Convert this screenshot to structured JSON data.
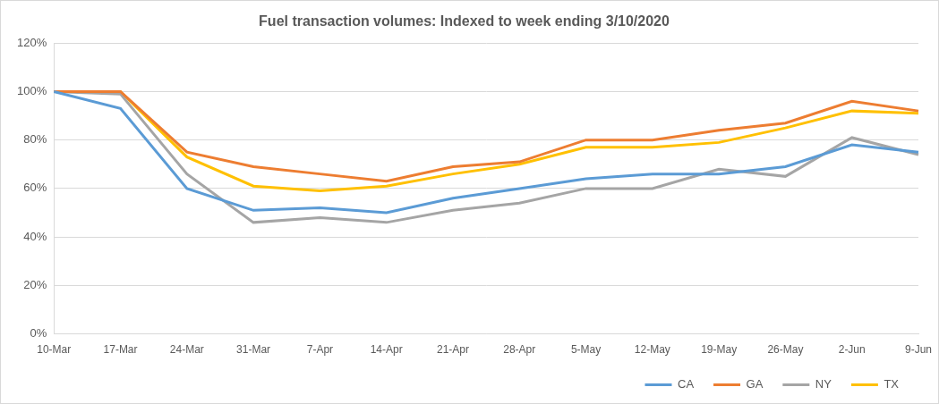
{
  "chart_data": {
    "type": "line",
    "title": "Fuel transaction volumes: Indexed to week ending 3/10/2020",
    "categories": [
      "10-Mar",
      "17-Mar",
      "24-Mar",
      "31-Mar",
      "7-Apr",
      "14-Apr",
      "21-Apr",
      "28-Apr",
      "5-May",
      "12-May",
      "19-May",
      "26-May",
      "2-Jun",
      "9-Jun"
    ],
    "series": [
      {
        "name": "CA",
        "color": "#5b9bd5",
        "values": [
          100,
          93,
          60,
          51,
          52,
          50,
          56,
          60,
          64,
          66,
          66,
          69,
          78,
          75
        ]
      },
      {
        "name": "GA",
        "color": "#ed7d31",
        "values": [
          100,
          100,
          75,
          69,
          66,
          63,
          69,
          71,
          80,
          80,
          84,
          87,
          96,
          92
        ]
      },
      {
        "name": "NY",
        "color": "#a5a5a5",
        "values": [
          100,
          99,
          66,
          46,
          48,
          46,
          51,
          54,
          60,
          60,
          68,
          65,
          81,
          74
        ]
      },
      {
        "name": "TX",
        "color": "#ffc000",
        "values": [
          100,
          100,
          73,
          61,
          59,
          61,
          66,
          70,
          77,
          77,
          79,
          85,
          92,
          91
        ]
      }
    ],
    "ylim": [
      0,
      120
    ],
    "yticks": [
      {
        "value": 0,
        "label": "0%"
      },
      {
        "value": 20,
        "label": "20%"
      },
      {
        "value": 40,
        "label": "40%"
      },
      {
        "value": 60,
        "label": "60%"
      },
      {
        "value": 80,
        "label": "80%"
      },
      {
        "value": 100,
        "label": "100%"
      },
      {
        "value": 120,
        "label": "120%"
      }
    ],
    "grid": true,
    "legend": "bottom",
    "marker": "none",
    "line_style": "solid"
  }
}
